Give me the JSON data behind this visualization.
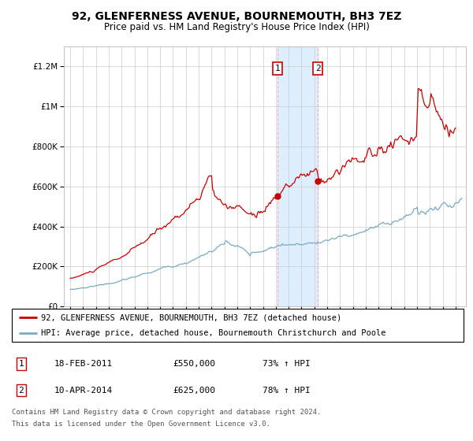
{
  "title": "92, GLENFERNESS AVENUE, BOURNEMOUTH, BH3 7EZ",
  "subtitle": "Price paid vs. HM Land Registry's House Price Index (HPI)",
  "legend_line1": "92, GLENFERNESS AVENUE, BOURNEMOUTH, BH3 7EZ (detached house)",
  "legend_line2": "HPI: Average price, detached house, Bournemouth Christchurch and Poole",
  "footer1": "Contains HM Land Registry data © Crown copyright and database right 2024.",
  "footer2": "This data is licensed under the Open Government Licence v3.0.",
  "sale1_label": "1",
  "sale1_date": "18-FEB-2011",
  "sale1_price": "£550,000",
  "sale1_hpi": "73% ↑ HPI",
  "sale2_label": "2",
  "sale2_date": "10-APR-2014",
  "sale2_price": "£625,000",
  "sale2_hpi": "78% ↑ HPI",
  "sale1_x": 2011.12,
  "sale1_y": 550000,
  "sale2_x": 2014.28,
  "sale2_y": 625000,
  "red_color": "#cc0000",
  "blue_color": "#7aaac8",
  "highlight_color": "#ddeeff",
  "grid_color": "#cccccc",
  "ylim": [
    0,
    1300000
  ],
  "xlim": [
    1994.5,
    2025.8
  ]
}
